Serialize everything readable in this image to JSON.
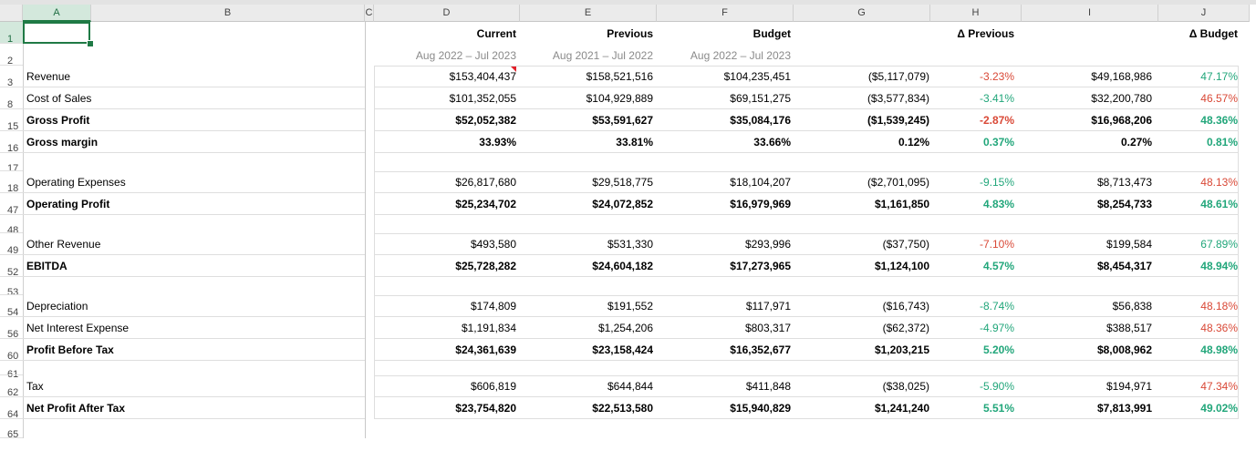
{
  "columns": [
    "A",
    "B",
    "C",
    "D",
    "E",
    "F",
    "G",
    "H",
    "I",
    "J"
  ],
  "header": {
    "current": "Current",
    "current_period": "Aug 2022 – Jul 2023",
    "previous": "Previous",
    "previous_period": "Aug 2021 – Jul 2022",
    "budget": "Budget",
    "budget_period": "Aug 2022 – Jul 2023",
    "delta_previous": "Δ Previous",
    "delta_budget": "Δ Budget"
  },
  "row_numbers": [
    "1",
    "2",
    "3",
    "8",
    "15",
    "16",
    "17",
    "18",
    "47",
    "48",
    "49",
    "52",
    "53",
    "54",
    "56",
    "60",
    "61",
    "62",
    "64",
    "65"
  ],
  "rows": [
    {
      "row": "3",
      "label": "Revenue",
      "bold": false,
      "d": "$153,404,437",
      "e": "$158,521,516",
      "f": "$104,235,451",
      "g": "($5,117,079)",
      "h": "-3.23%",
      "i": "$49,168,986",
      "j": "47.17%",
      "hc": "red",
      "jc": "grn"
    },
    {
      "row": "8",
      "label": "Cost of Sales",
      "bold": false,
      "d": "$101,352,055",
      "e": "$104,929,889",
      "f": "$69,151,275",
      "g": "($3,577,834)",
      "h": "-3.41%",
      "i": "$32,200,780",
      "j": "46.57%",
      "hc": "grn",
      "jc": "red"
    },
    {
      "row": "15",
      "label": "Gross Profit",
      "bold": true,
      "d": "$52,052,382",
      "e": "$53,591,627",
      "f": "$35,084,176",
      "g": "($1,539,245)",
      "h": "-2.87%",
      "i": "$16,968,206",
      "j": "48.36%",
      "hc": "red",
      "jc": "grn"
    },
    {
      "row": "16",
      "label": "Gross margin",
      "bold": true,
      "d": "33.93%",
      "e": "33.81%",
      "f": "33.66%",
      "g": "0.12%",
      "h": "0.37%",
      "i": "0.27%",
      "j": "0.81%",
      "hc": "grn",
      "jc": "grn"
    },
    {
      "row": "18",
      "label": "Operating Expenses",
      "bold": false,
      "d": "$26,817,680",
      "e": "$29,518,775",
      "f": "$18,104,207",
      "g": "($2,701,095)",
      "h": "-9.15%",
      "i": "$8,713,473",
      "j": "48.13%",
      "hc": "grn",
      "jc": "red"
    },
    {
      "row": "47",
      "label": "Operating Profit",
      "bold": true,
      "d": "$25,234,702",
      "e": "$24,072,852",
      "f": "$16,979,969",
      "g": "$1,161,850",
      "h": "4.83%",
      "i": "$8,254,733",
      "j": "48.61%",
      "hc": "grn",
      "jc": "grn"
    },
    {
      "row": "49",
      "label": "Other Revenue",
      "bold": false,
      "d": "$493,580",
      "e": "$531,330",
      "f": "$293,996",
      "g": "($37,750)",
      "h": "-7.10%",
      "i": "$199,584",
      "j": "67.89%",
      "hc": "red",
      "jc": "grn"
    },
    {
      "row": "52",
      "label": "EBITDA",
      "bold": true,
      "d": "$25,728,282",
      "e": "$24,604,182",
      "f": "$17,273,965",
      "g": "$1,124,100",
      "h": "4.57%",
      "i": "$8,454,317",
      "j": "48.94%",
      "hc": "grn",
      "jc": "grn"
    },
    {
      "row": "54",
      "label": "Depreciation",
      "bold": false,
      "d": "$174,809",
      "e": "$191,552",
      "f": "$117,971",
      "g": "($16,743)",
      "h": "-8.74%",
      "i": "$56,838",
      "j": "48.18%",
      "hc": "grn",
      "jc": "red"
    },
    {
      "row": "56",
      "label": "Net Interest Expense",
      "bold": false,
      "d": "$1,191,834",
      "e": "$1,254,206",
      "f": "$803,317",
      "g": "($62,372)",
      "h": "-4.97%",
      "i": "$388,517",
      "j": "48.36%",
      "hc": "grn",
      "jc": "red"
    },
    {
      "row": "60",
      "label": "Profit Before Tax",
      "bold": true,
      "d": "$24,361,639",
      "e": "$23,158,424",
      "f": "$16,352,677",
      "g": "$1,203,215",
      "h": "5.20%",
      "i": "$8,008,962",
      "j": "48.98%",
      "hc": "grn",
      "jc": "grn"
    },
    {
      "row": "62",
      "label": "Tax",
      "bold": false,
      "d": "$606,819",
      "e": "$644,844",
      "f": "$411,848",
      "g": "($38,025)",
      "h": "-5.90%",
      "i": "$194,971",
      "j": "47.34%",
      "hc": "grn",
      "jc": "red"
    },
    {
      "row": "64",
      "label": "Net Profit After Tax",
      "bold": true,
      "d": "$23,754,820",
      "e": "$22,513,580",
      "f": "$15,940,829",
      "g": "$1,241,240",
      "h": "5.51%",
      "i": "$7,813,991",
      "j": "49.02%",
      "hc": "grn",
      "jc": "grn"
    }
  ],
  "colors": {
    "red": "#d94836",
    "green": "#21a67a",
    "selection": "#1f7a45"
  }
}
